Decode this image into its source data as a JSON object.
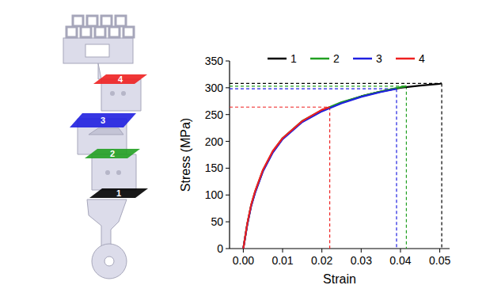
{
  "chart_data": {
    "type": "line",
    "x_label": "Strain",
    "y_label": "Stress (MPa)",
    "xlim": [
      -0.0035,
      0.0525
    ],
    "xticks": [
      {
        "value": 0,
        "label": "0.00"
      },
      0.01,
      0.02,
      0.03,
      0.04,
      0.05
    ],
    "ylim": [
      0,
      350
    ],
    "yticks": [
      0,
      50,
      100,
      150,
      200,
      250,
      300,
      350
    ],
    "legend": "top",
    "series": [
      {
        "name": "1",
        "color": "#000000",
        "x": [
          0,
          0.001,
          0.002,
          0.003,
          0.005,
          0.0075,
          0.01,
          0.015,
          0.02,
          0.025,
          0.03,
          0.035,
          0.04,
          0.045,
          0.05,
          0.0505
        ],
        "values": [
          0,
          45,
          80,
          105,
          145,
          180,
          205,
          237,
          257,
          272,
          284,
          293,
          300,
          304,
          307.5,
          308
        ]
      },
      {
        "name": "2",
        "color": "#22a022",
        "x": [
          0,
          0.001,
          0.002,
          0.003,
          0.005,
          0.0075,
          0.01,
          0.015,
          0.02,
          0.025,
          0.03,
          0.035,
          0.04,
          0.0415
        ],
        "values": [
          0,
          45,
          81,
          106,
          146,
          181,
          206,
          238,
          258,
          273,
          284,
          293,
          301,
          303
        ]
      },
      {
        "name": "3",
        "color": "#2020e0",
        "x": [
          0,
          0.001,
          0.002,
          0.003,
          0.005,
          0.0075,
          0.01,
          0.015,
          0.02,
          0.025,
          0.03,
          0.035,
          0.039
        ],
        "values": [
          0,
          44,
          79,
          104,
          144,
          179,
          204,
          236,
          256,
          271,
          283,
          292,
          298
        ]
      },
      {
        "name": "4",
        "color": "#ee2020",
        "x": [
          0,
          0.001,
          0.002,
          0.003,
          0.005,
          0.0075,
          0.01,
          0.015,
          0.02,
          0.022
        ],
        "values": [
          0,
          46,
          82,
          107,
          147,
          182,
          206,
          238,
          259,
          264
        ]
      }
    ]
  }
}
